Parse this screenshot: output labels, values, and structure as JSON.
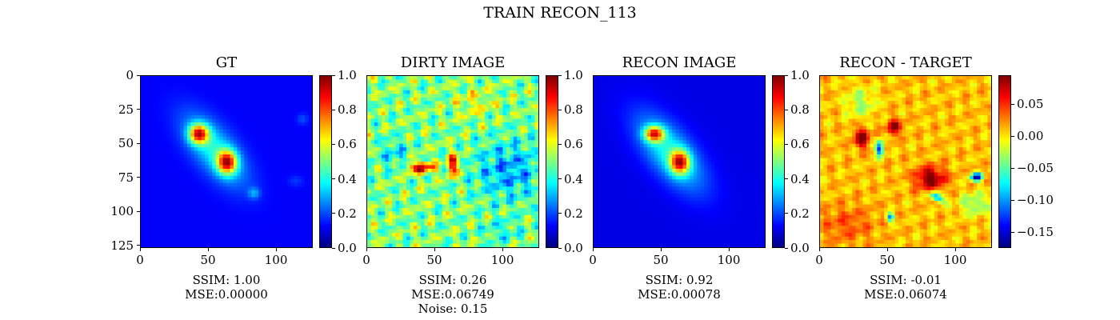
{
  "figure": {
    "title": "TRAIN RECON_113"
  },
  "colors": {
    "jet": [
      "#00007f",
      "#0000ff",
      "#007fff",
      "#00ffff",
      "#7fff7f",
      "#ffff00",
      "#ff7f00",
      "#ff0000",
      "#7f0000"
    ]
  },
  "chart_data": [
    {
      "type": "heatmap",
      "title": "GT",
      "xticks": [
        "0",
        "50",
        "100"
      ],
      "yticks": [
        "0",
        "25",
        "50",
        "75",
        "100",
        "125"
      ],
      "xlim": [
        0,
        127
      ],
      "ylim": [
        127,
        0
      ],
      "colorbar": {
        "range": [
          0.0,
          1.0
        ],
        "ticks": [
          "0.0",
          "0.2",
          "0.4",
          "0.6",
          "0.8",
          "1.0"
        ]
      },
      "captions": [
        "SSIM: 1.00",
        "MSE:0.00000"
      ],
      "field": {
        "background": 0.12,
        "blobs": [
          {
            "x": 55,
            "y": 55,
            "sx": 22,
            "sy": 10,
            "angle": 50,
            "amp": 0.28
          },
          {
            "x": 43,
            "y": 43,
            "sx": 5,
            "sy": 5,
            "angle": 0,
            "amp": 0.65
          },
          {
            "x": 64,
            "y": 64,
            "sx": 5,
            "sy": 6,
            "angle": 0,
            "amp": 0.65
          },
          {
            "x": 84,
            "y": 87,
            "sx": 3,
            "sy": 3,
            "angle": 0,
            "amp": 0.15
          },
          {
            "x": 120,
            "y": 32,
            "sx": 3,
            "sy": 3,
            "angle": 0,
            "amp": 0.08
          },
          {
            "x": 115,
            "y": 78,
            "sx": 4,
            "sy": 3,
            "angle": 0,
            "amp": 0.06
          }
        ]
      }
    },
    {
      "type": "heatmap",
      "title": "DIRTY IMAGE",
      "xticks": [
        "0",
        "50",
        "100"
      ],
      "yticks": [],
      "xlim": [
        0,
        127
      ],
      "ylim": [
        127,
        0
      ],
      "colorbar": {
        "range": [
          0.0,
          1.0
        ],
        "ticks": [
          "0.0",
          "0.2",
          "0.4",
          "0.6",
          "0.8",
          "1.0"
        ]
      },
      "captions": [
        "SSIM: 0.26",
        "MSE:0.06749",
        "Noise: 0.15"
      ],
      "field": {
        "background": 0.5,
        "noise": 0.15,
        "blobs": [
          {
            "x": 40,
            "y": 68,
            "sx": 7,
            "sy": 3,
            "angle": 0,
            "amp": 0.42
          },
          {
            "x": 64,
            "y": 66,
            "sx": 3,
            "sy": 6,
            "angle": 0,
            "amp": 0.4
          },
          {
            "x": 105,
            "y": 70,
            "sx": 18,
            "sy": 15,
            "angle": 0,
            "amp": -0.22
          },
          {
            "x": 20,
            "y": 58,
            "sx": 8,
            "sy": 8,
            "angle": 0,
            "amp": -0.14
          },
          {
            "x": 80,
            "y": 20,
            "sx": 10,
            "sy": 8,
            "angle": 0,
            "amp": 0.1
          },
          {
            "x": 100,
            "y": 115,
            "sx": 10,
            "sy": 6,
            "angle": 0,
            "amp": -0.1
          }
        ]
      }
    },
    {
      "type": "heatmap",
      "title": "RECON IMAGE",
      "xticks": [
        "0",
        "50",
        "100"
      ],
      "yticks": [],
      "xlim": [
        0,
        127
      ],
      "ylim": [
        127,
        0
      ],
      "colorbar": {
        "range": [
          0.0,
          1.0
        ],
        "ticks": [
          "0.0",
          "0.2",
          "0.4",
          "0.6",
          "0.8",
          "1.0"
        ]
      },
      "captions": [
        "SSIM: 0.92",
        "MSE:0.00078"
      ],
      "field": {
        "background": 0.1,
        "blobs": [
          {
            "x": 57,
            "y": 57,
            "sx": 24,
            "sy": 11,
            "angle": 50,
            "amp": 0.3
          },
          {
            "x": 45,
            "y": 43,
            "sx": 5,
            "sy": 4,
            "angle": 0,
            "amp": 0.62
          },
          {
            "x": 64,
            "y": 64,
            "sx": 5,
            "sy": 6,
            "angle": 0,
            "amp": 0.62
          }
        ]
      }
    },
    {
      "type": "heatmap",
      "title": "RECON - TARGET",
      "xticks": [
        "0",
        "50",
        "100"
      ],
      "yticks": [],
      "xlim": [
        0,
        127
      ],
      "ylim": [
        127,
        0
      ],
      "colorbar": {
        "range": [
          -0.175,
          0.095
        ],
        "ticks": [
          "0.05",
          "0.00",
          "−0.05",
          "−0.10",
          "−0.15"
        ],
        "tickValues": [
          0.05,
          0.0,
          -0.05,
          -0.1,
          -0.15
        ]
      },
      "captions": [
        "SSIM: -0.01",
        "MSE:0.06074"
      ],
      "field": {
        "background": 0.01,
        "noise": 0.02,
        "blobs": [
          {
            "x": 31,
            "y": 46,
            "sx": 4,
            "sy": 5,
            "angle": 0,
            "amp": 0.09
          },
          {
            "x": 55,
            "y": 38,
            "sx": 4,
            "sy": 4,
            "angle": 0,
            "amp": 0.08
          },
          {
            "x": 44,
            "y": 54,
            "sx": 2,
            "sy": 4,
            "angle": 0,
            "amp": -0.15
          },
          {
            "x": 82,
            "y": 76,
            "sx": 8,
            "sy": 6,
            "angle": 0,
            "amp": 0.09
          },
          {
            "x": 116,
            "y": 75,
            "sx": 3,
            "sy": 2,
            "angle": 0,
            "amp": -0.18
          },
          {
            "x": 87,
            "y": 90,
            "sx": 4,
            "sy": 2,
            "angle": 30,
            "amp": -0.12
          },
          {
            "x": 52,
            "y": 105,
            "sx": 2,
            "sy": 2,
            "angle": 0,
            "amp": -0.12
          },
          {
            "x": 115,
            "y": 95,
            "sx": 8,
            "sy": 6,
            "angle": 0,
            "amp": -0.05
          },
          {
            "x": 20,
            "y": 110,
            "sx": 14,
            "sy": 10,
            "angle": 0,
            "amp": 0.03
          },
          {
            "x": 30,
            "y": 20,
            "sx": 8,
            "sy": 8,
            "angle": 0,
            "amp": -0.04
          }
        ]
      }
    }
  ]
}
